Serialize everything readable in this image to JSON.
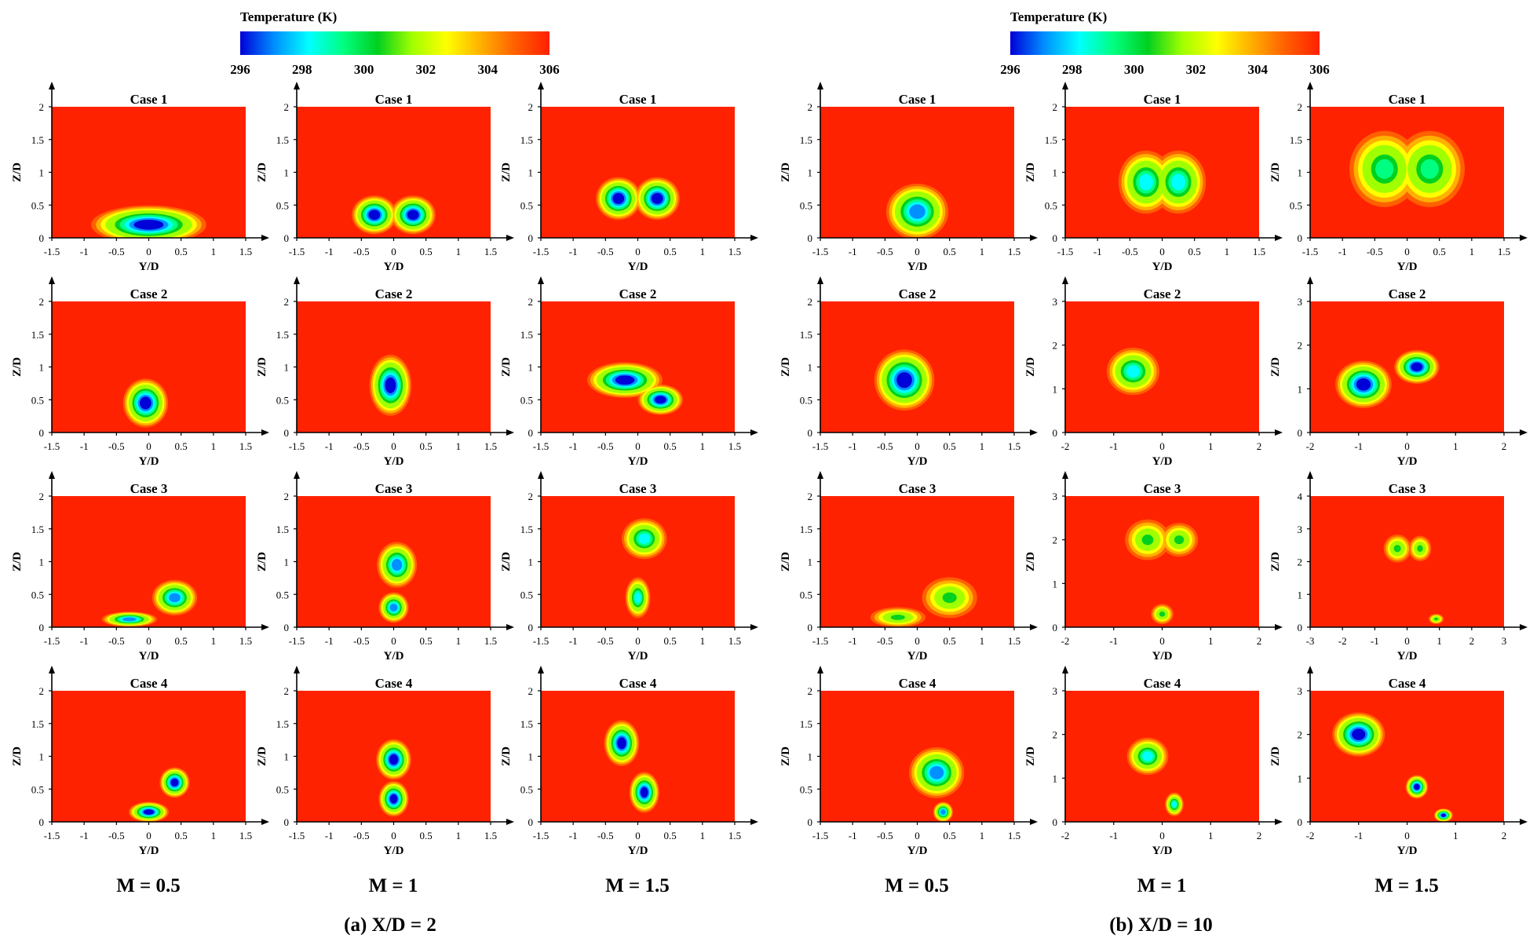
{
  "colorbar": {
    "title": "Temperature (K)",
    "ticks": [
      "296",
      "298",
      "300",
      "302",
      "304",
      "306"
    ],
    "colors": [
      "#0000d8",
      "#0090ff",
      "#00ffff",
      "#00ff80",
      "#00d020",
      "#a0ff00",
      "#ffff00",
      "#ffb000",
      "#ff6000",
      "#ff2000"
    ]
  },
  "background_color": "#ff2200",
  "column_labels": [
    "M = 0.5",
    "M = 1",
    "M = 1.5",
    "M = 0.5",
    "M = 1",
    "M = 1.5"
  ],
  "group_labels": [
    "(a) X/D = 2",
    "(b) X/D = 10"
  ],
  "row_titles": [
    "Case 1",
    "Case 2",
    "Case 3",
    "Case 4"
  ],
  "x_axis_label": "Y/D",
  "y_axis_label": "Z/D",
  "chart_data": [
    {
      "type": "heatmap",
      "title": "Case 1",
      "group": "(a) X/D = 2",
      "M": "M = 0.5",
      "xlim": [
        -1.5,
        1.5
      ],
      "ylim": [
        0,
        2
      ],
      "xticks": [
        "-1.5",
        "-1",
        "-0.5",
        "0",
        "0.5",
        "1",
        "1.5"
      ],
      "yticks": [
        "0",
        "0.5",
        "1",
        "1.5",
        "2"
      ],
      "xlabel": "Y/D",
      "ylabel": "Z/D",
      "min_temperature_K": 296,
      "core": [
        {
          "y": 0.0,
          "z": 0.2,
          "wy": 1.15,
          "wz": 0.38
        }
      ]
    },
    {
      "type": "heatmap",
      "title": "Case 1",
      "group": "(a) X/D = 2",
      "M": "M = 1",
      "xlim": [
        -1.5,
        1.5
      ],
      "ylim": [
        0,
        2
      ],
      "xticks": [
        "-1.5",
        "-1",
        "-0.5",
        "0",
        "0.5",
        "1",
        "1.5"
      ],
      "yticks": [
        "0",
        "0.5",
        "1",
        "1.5",
        "2"
      ],
      "xlabel": "Y/D",
      "ylabel": "Z/D",
      "min_temperature_K": 296,
      "core": [
        {
          "y": -0.3,
          "z": 0.35,
          "wy": 0.45,
          "wz": 0.38
        },
        {
          "y": 0.3,
          "z": 0.35,
          "wy": 0.45,
          "wz": 0.38
        }
      ]
    },
    {
      "type": "heatmap",
      "title": "Case 1",
      "group": "(a) X/D = 2",
      "M": "M = 1.5",
      "xlim": [
        -1.5,
        1.5
      ],
      "ylim": [
        0,
        2
      ],
      "xticks": [
        "-1.5",
        "-1",
        "-0.5",
        "0",
        "0.5",
        "1",
        "1.5"
      ],
      "yticks": [
        "0",
        "0.5",
        "1",
        "1.5",
        "2"
      ],
      "xlabel": "Y/D",
      "ylabel": "Z/D",
      "min_temperature_K": 296,
      "core": [
        {
          "y": -0.3,
          "z": 0.6,
          "wy": 0.45,
          "wz": 0.42
        },
        {
          "y": 0.3,
          "z": 0.6,
          "wy": 0.45,
          "wz": 0.42
        }
      ]
    },
    {
      "type": "heatmap",
      "title": "Case 1",
      "group": "(b) X/D = 10",
      "M": "M = 0.5",
      "xlim": [
        -1.5,
        1.5
      ],
      "ylim": [
        0,
        2
      ],
      "xticks": [
        "-1.5",
        "-1",
        "-0.5",
        "0",
        "0.5",
        "1",
        "1.5"
      ],
      "yticks": [
        "0",
        "0.5",
        "1",
        "1.5",
        "2"
      ],
      "xlabel": "Y/D",
      "ylabel": "Z/D",
      "min_temperature_K": 297,
      "core": [
        {
          "y": 0.0,
          "z": 0.4,
          "wy": 0.62,
          "wz": 0.55
        }
      ]
    },
    {
      "type": "heatmap",
      "title": "Case 1",
      "group": "(b) X/D = 10",
      "M": "M = 1",
      "xlim": [
        -1.5,
        1.5
      ],
      "ylim": [
        0,
        2
      ],
      "xticks": [
        "-1.5",
        "-1",
        "-0.5",
        "0",
        "0.5",
        "1",
        "1.5"
      ],
      "yticks": [
        "0",
        "0.5",
        "1",
        "1.5",
        "2"
      ],
      "xlabel": "Y/D",
      "ylabel": "Z/D",
      "min_temperature_K": 298,
      "core": [
        {
          "y": -0.25,
          "z": 0.85,
          "wy": 0.55,
          "wz": 0.62
        },
        {
          "y": 0.25,
          "z": 0.85,
          "wy": 0.55,
          "wz": 0.62
        }
      ]
    },
    {
      "type": "heatmap",
      "title": "Case 1",
      "group": "(b) X/D = 10",
      "M": "M = 1.5",
      "xlim": [
        -1.5,
        1.5
      ],
      "ylim": [
        0,
        2
      ],
      "xticks": [
        "-1.5",
        "-1",
        "-0.5",
        "0",
        "0.5",
        "1",
        "1.5"
      ],
      "yticks": [
        "0",
        "0.5",
        "1",
        "1.5",
        "2"
      ],
      "xlabel": "Y/D",
      "ylabel": "Z/D",
      "min_temperature_K": 299,
      "core": [
        {
          "y": -0.35,
          "z": 1.05,
          "wy": 0.7,
          "wz": 0.75
        },
        {
          "y": 0.35,
          "z": 1.05,
          "wy": 0.7,
          "wz": 0.75
        }
      ]
    },
    {
      "type": "heatmap",
      "title": "Case 2",
      "group": "(a) X/D = 2",
      "M": "M = 0.5",
      "xlim": [
        -1.5,
        1.5
      ],
      "ylim": [
        0,
        2
      ],
      "xticks": [
        "-1.5",
        "-1",
        "-0.5",
        "0",
        "0.5",
        "1",
        "1.5"
      ],
      "yticks": [
        "0",
        "0.5",
        "1",
        "1.5",
        "2"
      ],
      "xlabel": "Y/D",
      "ylabel": "Z/D",
      "min_temperature_K": 296,
      "core": [
        {
          "y": -0.05,
          "z": 0.45,
          "wy": 0.45,
          "wz": 0.48
        }
      ]
    },
    {
      "type": "heatmap",
      "title": "Case 2",
      "group": "(a) X/D = 2",
      "M": "M = 1",
      "xlim": [
        -1.5,
        1.5
      ],
      "ylim": [
        0,
        2
      ],
      "xticks": [
        "-1.5",
        "-1",
        "-0.5",
        "0",
        "0.5",
        "1",
        "1.5"
      ],
      "yticks": [
        "0",
        "0.5",
        "1",
        "1.5",
        "2"
      ],
      "xlabel": "Y/D",
      "ylabel": "Z/D",
      "min_temperature_K": 296,
      "core": [
        {
          "y": -0.05,
          "z": 0.72,
          "wy": 0.42,
          "wz": 0.6
        }
      ]
    },
    {
      "type": "heatmap",
      "title": "Case 2",
      "group": "(a) X/D = 2",
      "M": "M = 1.5",
      "xlim": [
        -1.5,
        1.5
      ],
      "ylim": [
        0,
        2
      ],
      "xticks": [
        "-1.5",
        "-1",
        "-0.5",
        "0",
        "0.5",
        "1",
        "1.5"
      ],
      "yticks": [
        "0",
        "0.5",
        "1",
        "1.5",
        "2"
      ],
      "xlabel": "Y/D",
      "ylabel": "Z/D",
      "min_temperature_K": 296,
      "core": [
        {
          "y": -0.2,
          "z": 0.8,
          "wy": 0.75,
          "wz": 0.35
        },
        {
          "y": 0.35,
          "z": 0.5,
          "wy": 0.45,
          "wz": 0.3
        }
      ]
    },
    {
      "type": "heatmap",
      "title": "Case 2",
      "group": "(b) X/D = 10",
      "M": "M = 0.5",
      "xlim": [
        -1.5,
        1.5
      ],
      "ylim": [
        0,
        2
      ],
      "xticks": [
        "-1.5",
        "-1",
        "-0.5",
        "0",
        "0.5",
        "1",
        "1.5"
      ],
      "yticks": [
        "0",
        "0.5",
        "1",
        "1.5",
        "2"
      ],
      "xlabel": "Y/D",
      "ylabel": "Z/D",
      "min_temperature_K": 296,
      "core": [
        {
          "y": -0.2,
          "z": 0.8,
          "wy": 0.6,
          "wz": 0.6
        }
      ]
    },
    {
      "type": "heatmap",
      "title": "Case 2",
      "group": "(b) X/D = 10",
      "M": "M = 1",
      "xlim": [
        -2,
        2
      ],
      "ylim": [
        0,
        3
      ],
      "xticks": [
        "-2",
        "-1",
        "0",
        "1",
        "2"
      ],
      "yticks": [
        "0",
        "1",
        "2",
        "3"
      ],
      "xlabel": "Y/D",
      "ylabel": "Z/D",
      "min_temperature_K": 298,
      "core": [
        {
          "y": -0.6,
          "z": 1.4,
          "wy": 0.7,
          "wz": 0.7
        }
      ]
    },
    {
      "type": "heatmap",
      "title": "Case 2",
      "group": "(b) X/D = 10",
      "M": "M = 1.5",
      "xlim": [
        -2,
        2
      ],
      "ylim": [
        0,
        3
      ],
      "xticks": [
        "-2",
        "-1",
        "0",
        "1",
        "2"
      ],
      "yticks": [
        "0",
        "1",
        "2",
        "3"
      ],
      "xlabel": "Y/D",
      "ylabel": "Z/D",
      "min_temperature_K": 296,
      "core": [
        {
          "y": -0.9,
          "z": 1.1,
          "wy": 0.75,
          "wz": 0.7
        },
        {
          "y": 0.2,
          "z": 1.5,
          "wy": 0.6,
          "wz": 0.5
        }
      ]
    },
    {
      "type": "heatmap",
      "title": "Case 3",
      "group": "(a) X/D = 2",
      "M": "M = 0.5",
      "xlim": [
        -1.5,
        1.5
      ],
      "ylim": [
        0,
        2
      ],
      "xticks": [
        "-1.5",
        "-1",
        "-0.5",
        "0",
        "0.5",
        "1",
        "1.5"
      ],
      "yticks": [
        "0",
        "0.5",
        "1",
        "1.5",
        "2"
      ],
      "xlabel": "Y/D",
      "ylabel": "Z/D",
      "min_temperature_K": 297,
      "core": [
        {
          "y": 0.4,
          "z": 0.45,
          "wy": 0.45,
          "wz": 0.35
        },
        {
          "y": -0.3,
          "z": 0.12,
          "wy": 0.55,
          "wz": 0.15
        }
      ]
    },
    {
      "type": "heatmap",
      "title": "Case 3",
      "group": "(a) X/D = 2",
      "M": "M = 1",
      "xlim": [
        -1.5,
        1.5
      ],
      "ylim": [
        0,
        2
      ],
      "xticks": [
        "-1.5",
        "-1",
        "-0.5",
        "0",
        "0.5",
        "1",
        "1.5"
      ],
      "yticks": [
        "0",
        "0.5",
        "1",
        "1.5",
        "2"
      ],
      "xlabel": "Y/D",
      "ylabel": "Z/D",
      "min_temperature_K": 297,
      "core": [
        {
          "y": 0.05,
          "z": 0.95,
          "wy": 0.4,
          "wz": 0.45
        },
        {
          "y": 0.0,
          "z": 0.3,
          "wy": 0.3,
          "wz": 0.3
        }
      ]
    },
    {
      "type": "heatmap",
      "title": "Case 3",
      "group": "(a) X/D = 2",
      "M": "M = 1.5",
      "xlim": [
        -1.5,
        1.5
      ],
      "ylim": [
        0,
        2
      ],
      "xticks": [
        "-1.5",
        "-1",
        "-0.5",
        "0",
        "0.5",
        "1",
        "1.5"
      ],
      "yticks": [
        "0",
        "0.5",
        "1",
        "1.5",
        "2"
      ],
      "xlabel": "Y/D",
      "ylabel": "Z/D",
      "min_temperature_K": 298,
      "core": [
        {
          "y": 0.1,
          "z": 1.35,
          "wy": 0.45,
          "wz": 0.4
        },
        {
          "y": 0.0,
          "z": 0.45,
          "wy": 0.25,
          "wz": 0.4
        }
      ]
    },
    {
      "type": "heatmap",
      "title": "Case 3",
      "group": "(b) X/D = 10",
      "M": "M = 0.5",
      "xlim": [
        -1.5,
        1.5
      ],
      "ylim": [
        0,
        2
      ],
      "xticks": [
        "-1.5",
        "-1",
        "-0.5",
        "0",
        "0.5",
        "1",
        "1.5"
      ],
      "yticks": [
        "0",
        "0.5",
        "1",
        "1.5",
        "2"
      ],
      "xlabel": "Y/D",
      "ylabel": "Z/D",
      "min_temperature_K": 300,
      "core": [
        {
          "y": 0.5,
          "z": 0.45,
          "wy": 0.55,
          "wz": 0.4
        },
        {
          "y": -0.3,
          "z": 0.15,
          "wy": 0.55,
          "wz": 0.2
        }
      ]
    },
    {
      "type": "heatmap",
      "title": "Case 3",
      "group": "(b) X/D = 10",
      "M": "M = 1",
      "xlim": [
        -2,
        2
      ],
      "ylim": [
        0,
        3
      ],
      "xticks": [
        "-2",
        "-1",
        "0",
        "1",
        "2"
      ],
      "yticks": [
        "0",
        "1",
        "2",
        "3"
      ],
      "xlabel": "Y/D",
      "ylabel": "Z/D",
      "min_temperature_K": 300,
      "core": [
        {
          "y": -0.3,
          "z": 2.0,
          "wy": 0.6,
          "wz": 0.6
        },
        {
          "y": 0.35,
          "z": 2.0,
          "wy": 0.5,
          "wz": 0.5
        },
        {
          "y": 0.0,
          "z": 0.3,
          "wy": 0.3,
          "wz": 0.3
        }
      ]
    },
    {
      "type": "heatmap",
      "title": "Case 3",
      "group": "(b) X/D = 10",
      "M": "M = 1.5",
      "xlim": [
        -3,
        3
      ],
      "ylim": [
        0,
        4
      ],
      "xticks": [
        "-3",
        "-2",
        "-1",
        "0",
        "1",
        "2",
        "3"
      ],
      "yticks": [
        "0",
        "1",
        "2",
        "3",
        "4"
      ],
      "xlabel": "Y/D",
      "ylabel": "Z/D",
      "min_temperature_K": 300,
      "core": [
        {
          "y": -0.3,
          "z": 2.4,
          "wy": 0.55,
          "wz": 0.55
        },
        {
          "y": 0.4,
          "z": 2.4,
          "wy": 0.45,
          "wz": 0.5
        },
        {
          "y": 0.9,
          "z": 0.25,
          "wy": 0.3,
          "wz": 0.2
        }
      ]
    },
    {
      "type": "heatmap",
      "title": "Case 4",
      "group": "(a) X/D = 2",
      "M": "M = 0.5",
      "xlim": [
        -1.5,
        1.5
      ],
      "ylim": [
        0,
        2
      ],
      "xticks": [
        "-1.5",
        "-1",
        "-0.5",
        "0",
        "0.5",
        "1",
        "1.5"
      ],
      "yticks": [
        "0",
        "0.5",
        "1",
        "1.5",
        "2"
      ],
      "xlabel": "Y/D",
      "ylabel": "Z/D",
      "min_temperature_K": 296,
      "core": [
        {
          "y": 0.0,
          "z": 0.15,
          "wy": 0.4,
          "wz": 0.2
        },
        {
          "y": 0.4,
          "z": 0.6,
          "wy": 0.3,
          "wz": 0.3
        }
      ]
    },
    {
      "type": "heatmap",
      "title": "Case 4",
      "group": "(a) X/D = 2",
      "M": "M = 1",
      "xlim": [
        -1.5,
        1.5
      ],
      "ylim": [
        0,
        2
      ],
      "xticks": [
        "-1.5",
        "-1",
        "-0.5",
        "0",
        "0.5",
        "1",
        "1.5"
      ],
      "yticks": [
        "0",
        "0.5",
        "1",
        "1.5",
        "2"
      ],
      "xlabel": "Y/D",
      "ylabel": "Z/D",
      "min_temperature_K": 296,
      "core": [
        {
          "y": 0.0,
          "z": 0.95,
          "wy": 0.35,
          "wz": 0.4
        },
        {
          "y": 0.0,
          "z": 0.35,
          "wy": 0.3,
          "wz": 0.35
        }
      ]
    },
    {
      "type": "heatmap",
      "title": "Case 4",
      "group": "(a) X/D = 2",
      "M": "M = 1.5",
      "xlim": [
        -1.5,
        1.5
      ],
      "ylim": [
        0,
        2
      ],
      "xticks": [
        "-1.5",
        "-1",
        "-0.5",
        "0",
        "0.5",
        "1",
        "1.5"
      ],
      "yticks": [
        "0",
        "0.5",
        "1",
        "1.5",
        "2"
      ],
      "xlabel": "Y/D",
      "ylabel": "Z/D",
      "min_temperature_K": 296,
      "core": [
        {
          "y": -0.25,
          "z": 1.2,
          "wy": 0.35,
          "wz": 0.45
        },
        {
          "y": 0.1,
          "z": 0.45,
          "wy": 0.3,
          "wz": 0.4
        }
      ]
    },
    {
      "type": "heatmap",
      "title": "Case 4",
      "group": "(b) X/D = 10",
      "M": "M = 0.5",
      "xlim": [
        -1.5,
        1.5
      ],
      "ylim": [
        0,
        2
      ],
      "xticks": [
        "-1.5",
        "-1",
        "-0.5",
        "0",
        "0.5",
        "1",
        "1.5"
      ],
      "yticks": [
        "0",
        "0.5",
        "1",
        "1.5",
        "2"
      ],
      "xlabel": "Y/D",
      "ylabel": "Z/D",
      "min_temperature_K": 297,
      "core": [
        {
          "y": 0.3,
          "z": 0.75,
          "wy": 0.55,
          "wz": 0.5
        },
        {
          "y": 0.4,
          "z": 0.15,
          "wy": 0.2,
          "wz": 0.2
        }
      ]
    },
    {
      "type": "heatmap",
      "title": "Case 4",
      "group": "(b) X/D = 10",
      "M": "M = 1",
      "xlim": [
        -2,
        2
      ],
      "ylim": [
        0,
        3
      ],
      "xticks": [
        "-2",
        "-1",
        "0",
        "1",
        "2"
      ],
      "yticks": [
        "0",
        "1",
        "2",
        "3"
      ],
      "xlabel": "Y/D",
      "ylabel": "Z/D",
      "min_temperature_K": 298,
      "core": [
        {
          "y": -0.3,
          "z": 1.5,
          "wy": 0.55,
          "wz": 0.55
        },
        {
          "y": 0.25,
          "z": 0.4,
          "wy": 0.25,
          "wz": 0.35
        }
      ]
    },
    {
      "type": "heatmap",
      "title": "Case 4",
      "group": "(b) X/D = 10",
      "M": "M = 1.5",
      "xlim": [
        -2,
        2
      ],
      "ylim": [
        0,
        3
      ],
      "xticks": [
        "-2",
        "-1",
        "0",
        "1",
        "2"
      ],
      "yticks": [
        "0",
        "1",
        "2",
        "3"
      ],
      "xlabel": "Y/D",
      "ylabel": "Z/D",
      "min_temperature_K": 296,
      "core": [
        {
          "y": -1.0,
          "z": 2.0,
          "wy": 0.7,
          "wz": 0.65
        },
        {
          "y": 0.2,
          "z": 0.8,
          "wy": 0.3,
          "wz": 0.35
        },
        {
          "y": 0.75,
          "z": 0.15,
          "wy": 0.25,
          "wz": 0.2
        }
      ]
    }
  ]
}
